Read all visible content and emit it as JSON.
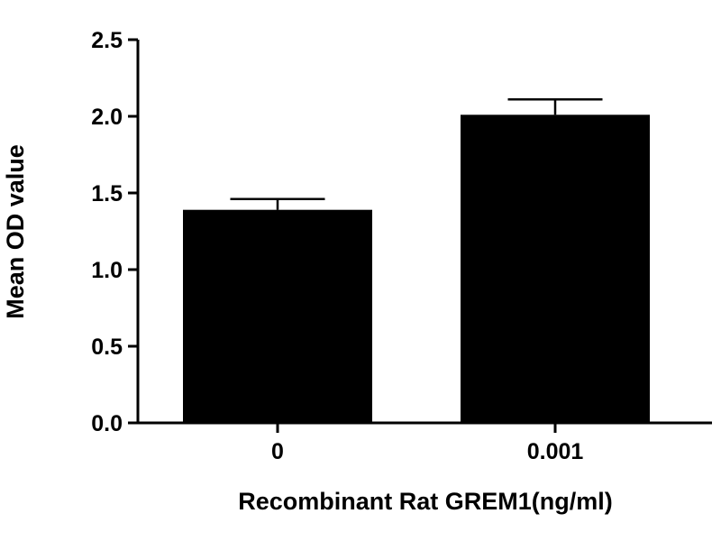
{
  "chart_data": {
    "type": "bar",
    "title": "",
    "xlabel": "Recombinant Rat GREM1(ng/ml)",
    "ylabel": "Mean OD value",
    "categories": [
      "0",
      "0.001"
    ],
    "values": [
      1.39,
      2.01
    ],
    "error": [
      0.07,
      0.1
    ],
    "ylim": [
      0,
      2.5
    ],
    "yticks": [
      "0.0",
      "0.5",
      "1.0",
      "1.5",
      "2.0",
      "2.5"
    ],
    "grid": false,
    "bar_color": "#000000"
  }
}
